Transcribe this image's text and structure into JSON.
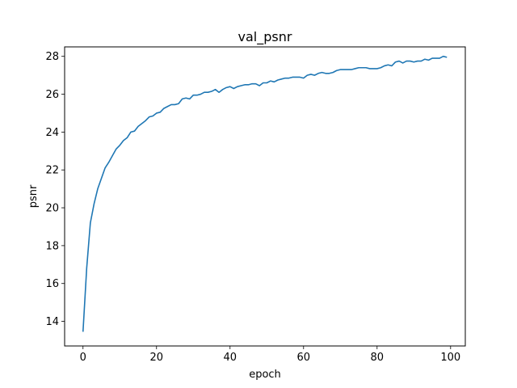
{
  "chart_data": {
    "type": "line",
    "title": "val_psnr",
    "xlabel": "epoch",
    "ylabel": "psnr",
    "xlim": [
      -5,
      104
    ],
    "ylim": [
      12.7,
      28.5
    ],
    "xticks": [
      0,
      20,
      40,
      60,
      80,
      100
    ],
    "yticks": [
      14,
      16,
      18,
      20,
      22,
      24,
      26,
      28
    ],
    "grid": false,
    "legend": "none",
    "colors": {
      "line": "#1f77b4",
      "axes": "#000000"
    },
    "series": [
      {
        "x": [
          0,
          1,
          2,
          3,
          4,
          5,
          6,
          7,
          8,
          9,
          10,
          11,
          12,
          13,
          14,
          15,
          16,
          17,
          18,
          19,
          20,
          21,
          22,
          23,
          24,
          25,
          26,
          27,
          28,
          29,
          30,
          31,
          32,
          33,
          34,
          35,
          36,
          37,
          38,
          39,
          40,
          41,
          42,
          43,
          44,
          45,
          46,
          47,
          48,
          49,
          50,
          51,
          52,
          53,
          54,
          55,
          56,
          57,
          58,
          59,
          60,
          61,
          62,
          63,
          64,
          65,
          66,
          67,
          68,
          69,
          70,
          71,
          72,
          73,
          74,
          75,
          76,
          77,
          78,
          79,
          80,
          81,
          82,
          83,
          84,
          85,
          86,
          87,
          88,
          89,
          90,
          91,
          92,
          93,
          94,
          95,
          96,
          97,
          98,
          99
        ],
        "values": [
          13.45,
          16.8,
          19.2,
          20.2,
          21.0,
          21.55,
          22.1,
          22.4,
          22.75,
          23.1,
          23.3,
          23.55,
          23.7,
          24.0,
          24.05,
          24.3,
          24.45,
          24.6,
          24.8,
          24.85,
          25.0,
          25.05,
          25.25,
          25.35,
          25.45,
          25.45,
          25.5,
          25.75,
          25.8,
          25.75,
          25.95,
          25.95,
          26.0,
          26.1,
          26.1,
          26.15,
          26.25,
          26.1,
          26.25,
          26.35,
          26.4,
          26.3,
          26.4,
          26.45,
          26.5,
          26.5,
          26.55,
          26.55,
          26.45,
          26.6,
          26.6,
          26.7,
          26.65,
          26.75,
          26.8,
          26.85,
          26.85,
          26.9,
          26.9,
          26.9,
          26.85,
          27.0,
          27.05,
          27.0,
          27.1,
          27.15,
          27.1,
          27.1,
          27.15,
          27.25,
          27.3,
          27.3,
          27.3,
          27.3,
          27.35,
          27.4,
          27.4,
          27.4,
          27.35,
          27.35,
          27.35,
          27.4,
          27.5,
          27.55,
          27.5,
          27.7,
          27.75,
          27.65,
          27.75,
          27.75,
          27.7,
          27.75,
          27.75,
          27.85,
          27.8,
          27.9,
          27.9,
          27.9,
          28.0,
          27.95
        ]
      }
    ]
  }
}
